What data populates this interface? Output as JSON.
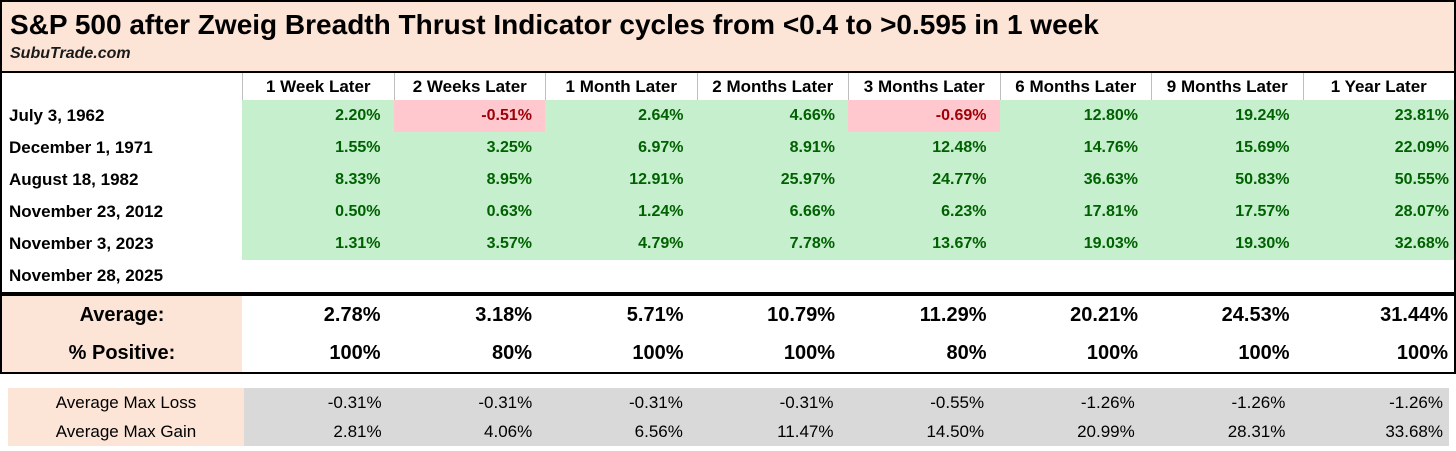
{
  "chart_data": {
    "type": "table",
    "title": "S&P 500 after Zweig Breadth Thrust Indicator cycles from <0.4 to >0.595 in 1 week",
    "watermark": "SubuTrade.com",
    "columns": [
      "1 Week Later",
      "2 Weeks Later",
      "1 Month Later",
      "2 Months Later",
      "3 Months Later",
      "6 Months Later",
      "9 Months Later",
      "1 Year Later"
    ],
    "rows": [
      {
        "date": "July 3, 1962",
        "values_pct": [
          2.2,
          -0.51,
          2.64,
          4.66,
          -0.69,
          12.8,
          19.24,
          23.81
        ]
      },
      {
        "date": "December 1, 1971",
        "values_pct": [
          1.55,
          3.25,
          6.97,
          8.91,
          12.48,
          14.76,
          15.69,
          22.09
        ]
      },
      {
        "date": "August 18, 1982",
        "values_pct": [
          8.33,
          8.95,
          12.91,
          25.97,
          24.77,
          36.63,
          50.83,
          50.55
        ]
      },
      {
        "date": "November 23, 2012",
        "values_pct": [
          0.5,
          0.63,
          1.24,
          6.66,
          6.23,
          17.81,
          17.57,
          28.07
        ]
      },
      {
        "date": "November 3, 2023",
        "values_pct": [
          1.31,
          3.57,
          4.79,
          7.78,
          13.67,
          19.03,
          19.3,
          32.68
        ]
      },
      {
        "date": "November 28, 2025",
        "values_pct": null
      }
    ],
    "summary": {
      "average_label": "Average:",
      "average_pct": [
        2.78,
        3.18,
        5.71,
        10.79,
        11.29,
        20.21,
        24.53,
        31.44
      ],
      "percent_positive_label": "% Positive:",
      "percent_positive": [
        100,
        80,
        100,
        100,
        80,
        100,
        100,
        100
      ]
    },
    "extremes": [
      {
        "label": "Average Max Loss",
        "values_pct": [
          -0.31,
          -0.31,
          -0.31,
          -0.31,
          -0.55,
          -1.26,
          -1.26,
          -1.26
        ]
      },
      {
        "label": "Average Max Gain",
        "values_pct": [
          2.81,
          4.06,
          6.56,
          11.47,
          14.5,
          20.99,
          28.31,
          33.68
        ]
      }
    ],
    "layout": {
      "grid": "off",
      "value_alignment": "right",
      "negative_highlight": true
    }
  },
  "colors": {
    "title_bg": "#FCE4D6",
    "label_bg": "#FCE4D6",
    "positive_bg": "#C6EFCE",
    "positive_text": "#006100",
    "negative_bg": "#FFC7CE",
    "negative_text": "#9C0006",
    "extremes_values_bg": "#D9D9D9",
    "border": "#000000",
    "gridline": "#BFBFBF"
  }
}
